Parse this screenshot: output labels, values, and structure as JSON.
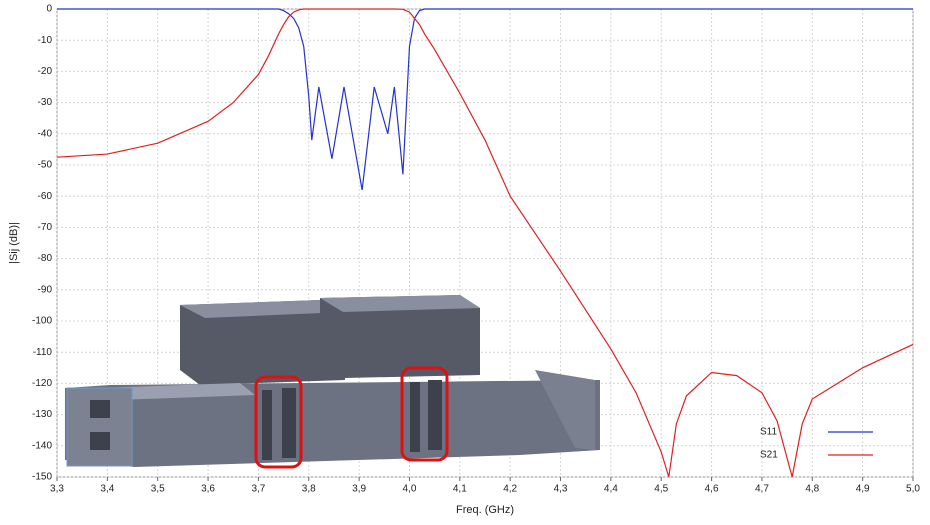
{
  "chart_data": {
    "type": "line",
    "x_label": "Freq. (GHz)",
    "y_label": "|Sij (dB)|",
    "x": [
      3.3,
      3.4,
      3.5,
      3.6,
      3.65,
      3.7,
      3.72,
      3.74,
      3.75,
      3.76,
      3.77,
      3.78,
      3.79,
      3.8,
      3.806,
      3.82,
      3.846,
      3.87,
      3.906,
      3.93,
      3.957,
      3.97,
      3.987,
      4.0,
      4.01,
      4.02,
      4.03,
      4.05,
      4.1,
      4.15,
      4.2,
      4.3,
      4.4,
      4.45,
      4.5,
      4.515,
      4.53,
      4.55,
      4.6,
      4.65,
      4.7,
      4.73,
      4.76,
      4.78,
      4.8,
      4.9,
      5.0
    ],
    "series": [
      {
        "name": "S11",
        "color": "#2233cc",
        "values": [
          0,
          0,
          0,
          0,
          0,
          0,
          0,
          0,
          -0.5,
          -1.5,
          -3,
          -6,
          -12,
          -28,
          -42,
          -25,
          -48,
          -25,
          -58,
          -25,
          -40,
          -25,
          -53,
          -12,
          -3,
          -0.5,
          0,
          0,
          0,
          0,
          0,
          0,
          0,
          0,
          0,
          0,
          0,
          0,
          0,
          0,
          0,
          0,
          0,
          0,
          0,
          0,
          0
        ]
      },
      {
        "name": "S21",
        "color": "#e02020",
        "values": [
          -47.5,
          -46.5,
          -43,
          -36,
          -30,
          -21,
          -15,
          -8,
          -5,
          -2.5,
          -1,
          -0.3,
          0,
          0,
          0,
          0,
          0,
          0,
          0,
          0,
          0,
          0,
          -0.1,
          -1,
          -3,
          -5,
          -8,
          -13,
          -27,
          -42,
          -60,
          -84,
          -109,
          -123,
          -142,
          -150,
          -133,
          -124,
          -116.5,
          -117.5,
          -123,
          -132,
          -150,
          -133,
          -125,
          -115,
          -107.5
        ]
      }
    ],
    "xlim": [
      3.3,
      5.0
    ],
    "ylim": [
      -150,
      0
    ],
    "xticks": [
      {
        "value": 3.3,
        "label": "3,3"
      },
      {
        "value": 3.4,
        "label": "3,4"
      },
      {
        "value": 3.5,
        "label": "3,5"
      },
      {
        "value": 3.6,
        "label": "3,6"
      },
      {
        "value": 3.7,
        "label": "3,7"
      },
      {
        "value": 3.8,
        "label": "3,8"
      },
      {
        "value": 3.9,
        "label": "3,9"
      },
      {
        "value": 4.0,
        "label": "4,0"
      },
      {
        "value": 4.1,
        "label": "4,1"
      },
      {
        "value": 4.2,
        "label": "4,2"
      },
      {
        "value": 4.3,
        "label": "4,3"
      },
      {
        "value": 4.4,
        "label": "4,4"
      },
      {
        "value": 4.5,
        "label": "4,5"
      },
      {
        "value": 4.6,
        "label": "4,6"
      },
      {
        "value": 4.7,
        "label": "4,7"
      },
      {
        "value": 4.8,
        "label": "4,8"
      },
      {
        "value": 4.9,
        "label": "4,9"
      },
      {
        "value": 5.0,
        "label": "5,0"
      }
    ],
    "yticks": [
      0,
      -10,
      -20,
      -30,
      -40,
      -50,
      -60,
      -70,
      -80,
      -90,
      -100,
      -110,
      -120,
      -130,
      -140,
      -150
    ],
    "grid": true
  }
}
